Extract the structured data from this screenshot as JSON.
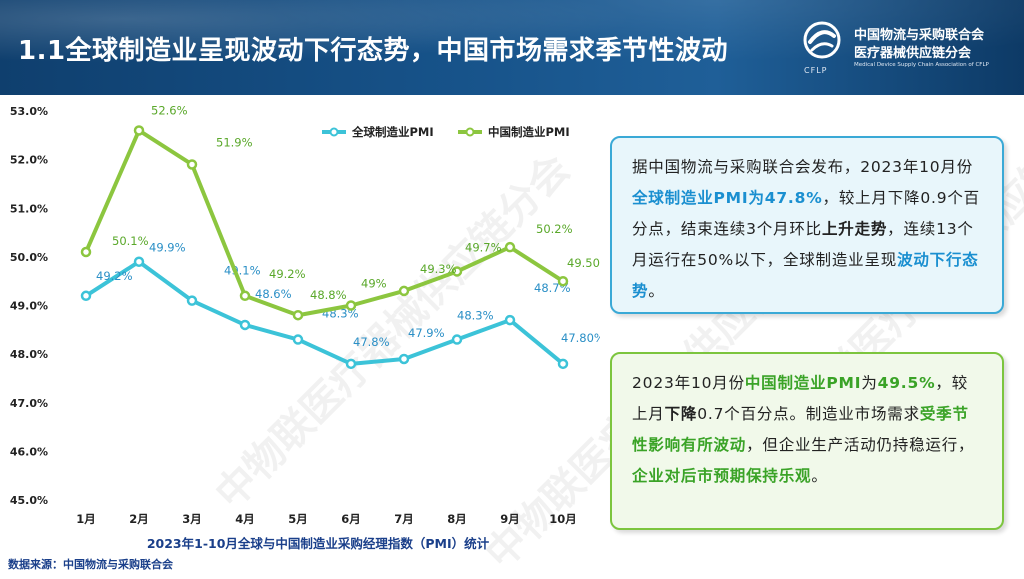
{
  "header": {
    "title": "1.1全球制造业呈现波动下行态势，中国市场需求季节性波动",
    "logo_line1": "中国物流与采购联合会",
    "logo_line2": "医疗器械供应链分会",
    "logo_en": "Medical Device Supply Chain Association of CFLP",
    "logo_abbr": "CFLP"
  },
  "chart_data": {
    "type": "line",
    "title": "2023年1-10月全球与中国制造业采购经理指数（PMI）统计",
    "categories": [
      "1月",
      "2月",
      "3月",
      "4月",
      "5月",
      "6月",
      "7月",
      "8月",
      "9月",
      "10月"
    ],
    "ylim": [
      45.0,
      53.0
    ],
    "yticks": [
      "45.0%",
      "46.0%",
      "47.0%",
      "48.0%",
      "49.0%",
      "50.0%",
      "51.0%",
      "52.0%",
      "53.0%"
    ],
    "legend_position": "top",
    "grid": false,
    "series": [
      {
        "name": "全球制造业PMI",
        "color": "#3cc3d8",
        "values": [
          49.2,
          49.9,
          49.1,
          48.6,
          48.3,
          47.8,
          47.9,
          48.3,
          48.7,
          47.8
        ],
        "labels": [
          "49.2%",
          "49.9%",
          "49.1%",
          "48.6%",
          "48.3%",
          "47.8%",
          "47.9%",
          "48.3%",
          "48.7%",
          "47.80%"
        ]
      },
      {
        "name": "中国制造业PMI",
        "color": "#8cc63f",
        "values": [
          50.1,
          52.6,
          51.9,
          49.2,
          48.8,
          49.0,
          49.3,
          49.7,
          50.2,
          49.5
        ],
        "labels": [
          "50.1%",
          "52.6%",
          "51.9%",
          "49.2%",
          "48.8%",
          "49%",
          "49.3%",
          "49.7%",
          "50.2%",
          "49.50%"
        ]
      }
    ]
  },
  "box_global": {
    "t1": "据中国物流与采购联合会发布，2023年10月份",
    "h1": "全球制造业PMI为47.8%",
    "t2": "，较上月下降0.9个百分点，结束连续3个月环比",
    "h2": "上升走势",
    "t3": "，连续13个月运行在50%以下，全球制造业呈现",
    "h3": "波动下行态势",
    "t4": "。"
  },
  "box_china": {
    "t1": "2023年10月份",
    "h1": "中国制造业PMI",
    "t2": "为",
    "h2": "49.5%",
    "t3": "，较上月",
    "h3": "下降",
    "t4": "0.7个百分点。制造业市场需求",
    "h4": "受季节性影响有所波动",
    "t5": "，但企业生产活动仍持稳运行，",
    "h5": "企业对后市预期保持乐观",
    "t6": "。"
  },
  "source": "数据来源：中国物流与采购联合会",
  "watermark": "中物联医疗器械供应链分会",
  "colors": {
    "header": "#17538a",
    "global": "#3cc3d8",
    "china": "#8cc63f",
    "box_blue": "#3aa9d6",
    "box_green": "#7cc53e"
  }
}
